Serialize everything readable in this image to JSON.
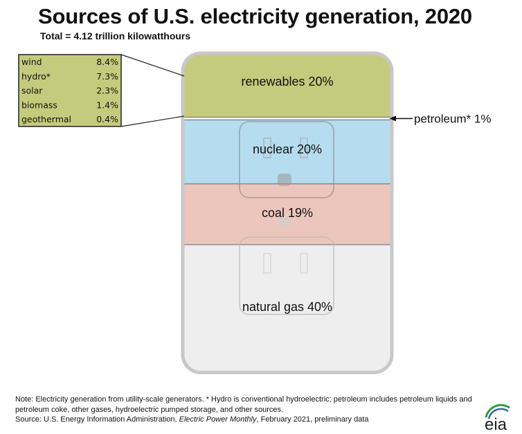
{
  "title": "Sources of U.S. electricity generation, 2020",
  "subtitle": "Total = 4.12 trillion kilowatthours",
  "note": "Note: Electricity generation from utility-scale generators. * Hydro is conventional hydroelectric; petroleum includes petroleum liquids and petroleum coke, other gases, hydroelectric pumped storage, and other sources.",
  "source": {
    "prefix": "Source: U.S. Energy Information Administration, ",
    "publication": "Electric Power Monthly",
    "suffix": ", February 2021, preliminary data"
  },
  "logo_text": "eia",
  "colors": {
    "renewables": "#c5cb7c",
    "petroleum": "#ffffff",
    "nuclear": "#b5dcef",
    "coal": "#ecc6bc",
    "natural_gas": "#eeeeee",
    "frame": "#c8c8c8",
    "logo_green": "#2e9d3f",
    "logo_blue": "#2b6ab3"
  },
  "chart_data": {
    "type": "stacked-bar",
    "title": "Sources of U.S. electricity generation, 2020",
    "total": "4.12 trillion kilowatthours",
    "segments": [
      {
        "name": "renewables",
        "label": "renewables 20%",
        "value": 20,
        "color": "#c5cb7c"
      },
      {
        "name": "petroleum",
        "label": "petroleum* 1%",
        "value": 1,
        "color": "#ffffff"
      },
      {
        "name": "nuclear",
        "label": "nuclear 20%",
        "value": 20,
        "color": "#b5dcef"
      },
      {
        "name": "coal",
        "label": "coal 19%",
        "value": 19,
        "color": "#ecc6bc"
      },
      {
        "name": "natural-gas",
        "label": "natural gas 40%",
        "value": 40,
        "color": "#eeeeee"
      }
    ],
    "renewables_breakdown": [
      {
        "name": "wind",
        "value_label": "8.4%",
        "value": 8.4
      },
      {
        "name": "hydro*",
        "value_label": "7.3%",
        "value": 7.3
      },
      {
        "name": "solar",
        "value_label": "2.3%",
        "value": 2.3
      },
      {
        "name": "biomass",
        "value_label": "1.4%",
        "value": 1.4
      },
      {
        "name": "geothermal",
        "value_label": "0.4%",
        "value": 0.4
      }
    ]
  }
}
